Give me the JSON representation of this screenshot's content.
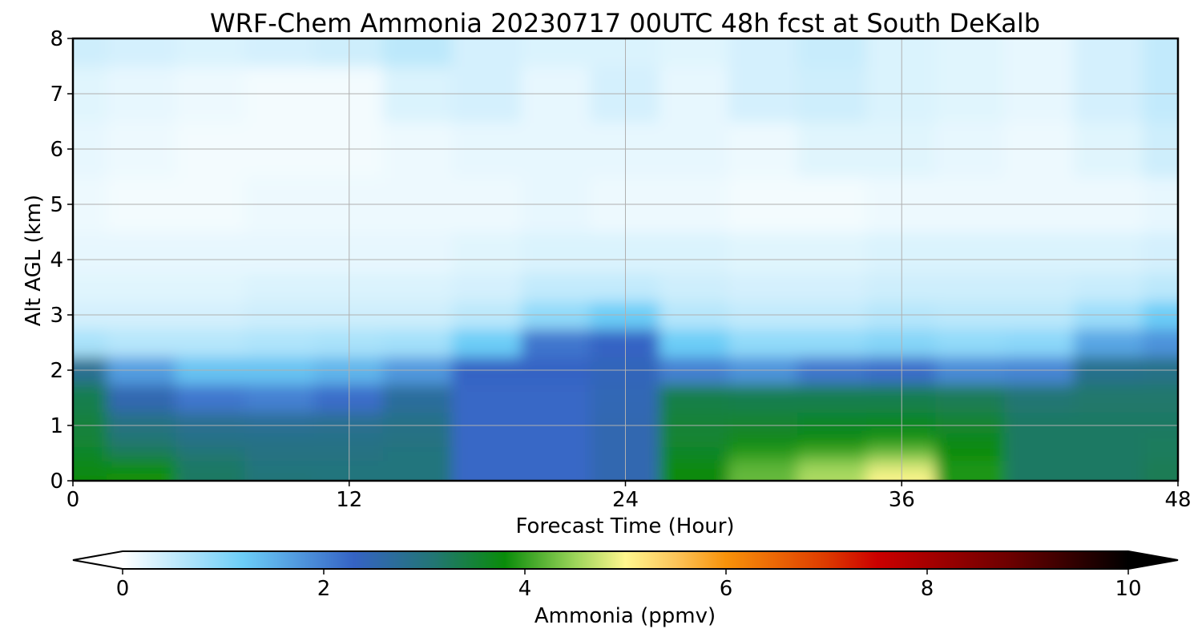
{
  "chart_data": {
    "type": "heatmap",
    "title": "WRF-Chem Ammonia  20230717 00UTC 48h fcst at South DeKalb",
    "xlabel": "Forecast Time (Hour)",
    "ylabel": "Alt AGL (km)",
    "xlim": [
      0,
      48
    ],
    "ylim": [
      0,
      8
    ],
    "x_ticks": [
      0,
      12,
      24,
      36,
      48
    ],
    "y_ticks": [
      0,
      1,
      2,
      3,
      4,
      5,
      6,
      7,
      8
    ],
    "grid": true,
    "x": [
      0,
      3,
      6,
      9,
      12,
      15,
      18,
      21,
      24,
      27,
      30,
      33,
      36,
      39,
      42,
      45,
      48
    ],
    "y": [
      0,
      0.25,
      0.5,
      0.75,
      1,
      1.5,
      2,
      2.5,
      3,
      3.5,
      4,
      5,
      6,
      7,
      8
    ],
    "z": [
      [
        3.75,
        3.85,
        3.2,
        3.05,
        3.0,
        3.0,
        2.25,
        2.25,
        2.5,
        3.75,
        4.25,
        4.6,
        5.0,
        3.9,
        3.2,
        3.2,
        3.3
      ],
      [
        3.7,
        3.8,
        3.2,
        3.0,
        3.0,
        3.0,
        2.25,
        2.25,
        2.5,
        3.75,
        4.2,
        4.5,
        4.8,
        3.9,
        3.2,
        3.2,
        3.3
      ],
      [
        3.6,
        3.3,
        3.1,
        2.95,
        2.95,
        3.0,
        2.25,
        2.25,
        2.5,
        3.6,
        3.95,
        4.1,
        4.3,
        3.8,
        3.2,
        3.2,
        3.25
      ],
      [
        3.5,
        3.1,
        2.9,
        2.9,
        2.9,
        2.95,
        2.25,
        2.25,
        2.5,
        3.55,
        3.7,
        3.8,
        3.9,
        3.7,
        3.2,
        3.2,
        3.25
      ],
      [
        3.45,
        2.95,
        2.8,
        2.75,
        2.8,
        2.9,
        2.25,
        2.25,
        2.5,
        3.5,
        3.55,
        3.6,
        3.65,
        3.55,
        3.2,
        3.2,
        3.2
      ],
      [
        3.35,
        2.5,
        2.1,
        2.0,
        2.2,
        2.7,
        2.25,
        2.25,
        2.45,
        3.4,
        3.35,
        3.35,
        3.35,
        3.3,
        3.1,
        3.15,
        3.15
      ],
      [
        2.8,
        1.7,
        1.3,
        1.3,
        1.45,
        1.75,
        2.3,
        2.3,
        2.4,
        2.0,
        1.8,
        2.1,
        2.2,
        1.9,
        1.95,
        2.85,
        2.9
      ],
      [
        0.7,
        0.6,
        0.6,
        0.65,
        0.7,
        0.75,
        1.2,
        2.1,
        2.3,
        1.2,
        0.9,
        0.9,
        1.0,
        0.9,
        0.95,
        1.6,
        1.8
      ],
      [
        0.35,
        0.35,
        0.35,
        0.4,
        0.4,
        0.4,
        0.55,
        0.9,
        1.2,
        0.6,
        0.5,
        0.5,
        0.6,
        0.55,
        0.55,
        0.8,
        1.2
      ],
      [
        0.25,
        0.25,
        0.25,
        0.3,
        0.3,
        0.3,
        0.35,
        0.5,
        0.5,
        0.4,
        0.35,
        0.35,
        0.4,
        0.4,
        0.4,
        0.45,
        0.55
      ],
      [
        0.2,
        0.2,
        0.2,
        0.2,
        0.2,
        0.2,
        0.25,
        0.3,
        0.3,
        0.3,
        0.25,
        0.25,
        0.3,
        0.3,
        0.3,
        0.3,
        0.35
      ],
      [
        0.15,
        0.1,
        0.1,
        0.15,
        0.15,
        0.15,
        0.15,
        0.2,
        0.15,
        0.15,
        0.1,
        0.1,
        0.15,
        0.15,
        0.15,
        0.15,
        0.2
      ],
      [
        0.2,
        0.15,
        0.1,
        0.1,
        0.1,
        0.15,
        0.2,
        0.2,
        0.2,
        0.2,
        0.15,
        0.25,
        0.25,
        0.2,
        0.15,
        0.25,
        0.4
      ],
      [
        0.25,
        0.2,
        0.15,
        0.1,
        0.1,
        0.3,
        0.35,
        0.2,
        0.35,
        0.2,
        0.35,
        0.4,
        0.3,
        0.25,
        0.2,
        0.35,
        0.5
      ],
      [
        0.4,
        0.35,
        0.3,
        0.35,
        0.4,
        0.55,
        0.35,
        0.3,
        0.3,
        0.25,
        0.35,
        0.45,
        0.3,
        0.25,
        0.2,
        0.35,
        0.5
      ]
    ],
    "colorbar": {
      "label": "Ammonia  (ppmv)",
      "min": 0,
      "max": 10,
      "ticks": [
        0,
        2,
        4,
        6,
        8,
        10
      ],
      "extend": "both",
      "stops": [
        {
          "v": 0.0,
          "c": "#ffffff"
        },
        {
          "v": 1.2,
          "c": "#6ccdf7"
        },
        {
          "v": 2.3,
          "c": "#3563c4"
        },
        {
          "v": 3.1,
          "c": "#227673"
        },
        {
          "v": 3.8,
          "c": "#0a8c0a"
        },
        {
          "v": 4.5,
          "c": "#9cd45a"
        },
        {
          "v": 5.0,
          "c": "#fff68e"
        },
        {
          "v": 5.5,
          "c": "#fcc55a"
        },
        {
          "v": 6.0,
          "c": "#f8920a"
        },
        {
          "v": 7.0,
          "c": "#de3a00"
        },
        {
          "v": 7.5,
          "c": "#cb0000"
        },
        {
          "v": 8.8,
          "c": "#6e0000"
        },
        {
          "v": 10.0,
          "c": "#000000"
        }
      ]
    }
  }
}
